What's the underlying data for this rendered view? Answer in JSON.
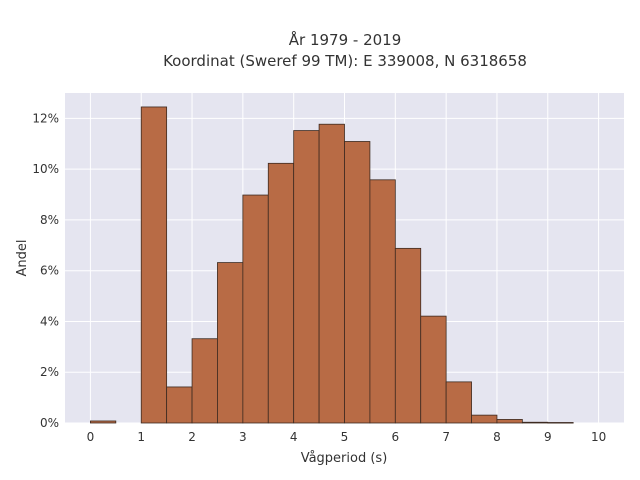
{
  "chart_data": {
    "type": "bar",
    "title_lines": [
      "År 1979 - 2019",
      "Koordinat (Sweref 99 TM): E 339008, N 6318658"
    ],
    "xlabel": "Vågperiod (s)",
    "ylabel": "Andel",
    "xlim": [
      -0.5,
      10.5
    ],
    "ylim": [
      0,
      0.13
    ],
    "bin_width": 0.5,
    "bins": [
      {
        "start": 0.0,
        "value": 0.0008
      },
      {
        "start": 1.0,
        "value": 0.1245
      },
      {
        "start": 1.5,
        "value": 0.0142
      },
      {
        "start": 2.0,
        "value": 0.0332
      },
      {
        "start": 2.5,
        "value": 0.0632
      },
      {
        "start": 3.0,
        "value": 0.0898
      },
      {
        "start": 3.5,
        "value": 0.1023
      },
      {
        "start": 4.0,
        "value": 0.1152
      },
      {
        "start": 4.5,
        "value": 0.1177
      },
      {
        "start": 5.0,
        "value": 0.1109
      },
      {
        "start": 5.5,
        "value": 0.0958
      },
      {
        "start": 6.0,
        "value": 0.0688
      },
      {
        "start": 6.5,
        "value": 0.0421
      },
      {
        "start": 7.0,
        "value": 0.0162
      },
      {
        "start": 7.5,
        "value": 0.0031
      },
      {
        "start": 8.0,
        "value": 0.0014
      },
      {
        "start": 8.5,
        "value": 0.0003
      },
      {
        "start": 9.0,
        "value": 0.0002
      }
    ],
    "x_ticks": [
      {
        "value": 0,
        "label": "0"
      },
      {
        "value": 1,
        "label": "1"
      },
      {
        "value": 2,
        "label": "2"
      },
      {
        "value": 3,
        "label": "3"
      },
      {
        "value": 4,
        "label": "4"
      },
      {
        "value": 5,
        "label": "5"
      },
      {
        "value": 6,
        "label": "6"
      },
      {
        "value": 7,
        "label": "7"
      },
      {
        "value": 8,
        "label": "8"
      },
      {
        "value": 9,
        "label": "9"
      },
      {
        "value": 10,
        "label": "10"
      }
    ],
    "y_ticks": [
      {
        "value": 0,
        "label": "0%"
      },
      {
        "value": 0.02,
        "label": "2%"
      },
      {
        "value": 0.04,
        "label": "4%"
      },
      {
        "value": 0.06,
        "label": "6%"
      },
      {
        "value": 0.08,
        "label": "8%"
      },
      {
        "value": 0.1,
        "label": "10%"
      },
      {
        "value": 0.12,
        "label": "12%"
      }
    ],
    "grid": true,
    "colors": {
      "bar_fill": "#b86b45",
      "bar_stroke": "#3d2a20",
      "plot_bg": "#e5e5f0",
      "grid": "#ffffff"
    }
  }
}
